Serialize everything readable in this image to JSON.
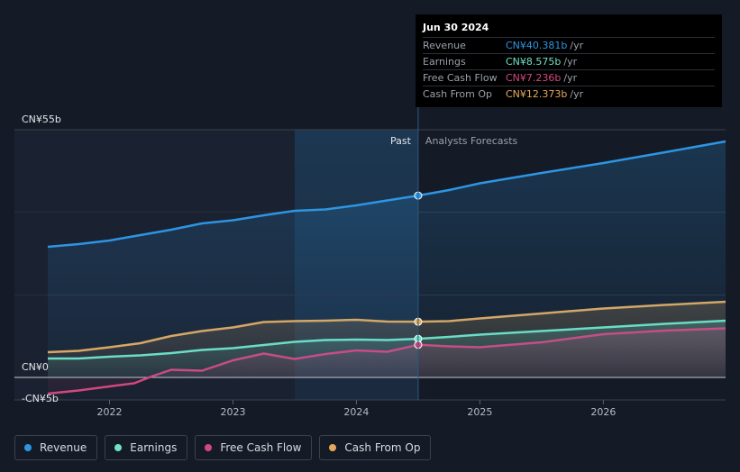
{
  "colors": {
    "revenue": "#2d95e3",
    "earnings": "#6fe3c4",
    "fcf": "#d1487f",
    "cfo": "#e5a95b",
    "background": "#151b26"
  },
  "tooltip": {
    "date": "Jun 30 2024",
    "rows": [
      {
        "label": "Revenue",
        "value": "CN¥40.381b",
        "unit": "/yr",
        "color_key": "revenue"
      },
      {
        "label": "Earnings",
        "value": "CN¥8.575b",
        "unit": "/yr",
        "color_key": "earnings"
      },
      {
        "label": "Free Cash Flow",
        "value": "CN¥7.236b",
        "unit": "/yr",
        "color_key": "fcf"
      },
      {
        "label": "Cash From Op",
        "value": "CN¥12.373b",
        "unit": "/yr",
        "color_key": "cfo"
      }
    ]
  },
  "legend": [
    {
      "label": "Revenue",
      "color_key": "revenue"
    },
    {
      "label": "Earnings",
      "color_key": "earnings"
    },
    {
      "label": "Free Cash Flow",
      "color_key": "fcf"
    },
    {
      "label": "Cash From Op",
      "color_key": "cfo"
    }
  ],
  "chart_data": {
    "type": "area",
    "ylim": [
      -5,
      55
    ],
    "y_tick_labels": [
      "CN¥55b",
      "CN¥0",
      "-CN¥5b"
    ],
    "y_tick_values": [
      55,
      0,
      -5
    ],
    "x_tick_labels": [
      "2022",
      "2023",
      "2024",
      "2025",
      "2026"
    ],
    "x_tick_values": [
      2022,
      2023,
      2024,
      2025,
      2026
    ],
    "xlim": [
      2021.23,
      2026.99
    ],
    "past_label": "Past",
    "forecast_label": "Analysts Forecasts",
    "past_end": 2024.5,
    "highlight_start": 2023.5,
    "grid": true,
    "legend_position": "bottom-left",
    "series": [
      {
        "name": "Revenue",
        "color_key": "revenue",
        "x": [
          2021.5,
          2021.75,
          2022.0,
          2022.25,
          2022.5,
          2022.75,
          2023.0,
          2023.25,
          2023.5,
          2023.75,
          2024.0,
          2024.25,
          2024.5,
          2024.75,
          2025.0,
          2025.5,
          2026.0,
          2026.5,
          2026.99
        ],
        "values": [
          29.0,
          29.6,
          30.4,
          31.6,
          32.8,
          34.2,
          34.9,
          36.0,
          37.0,
          37.3,
          38.2,
          39.3,
          40.381,
          41.6,
          43.1,
          45.4,
          47.6,
          50.0,
          52.4
        ]
      },
      {
        "name": "Earnings",
        "color_key": "earnings",
        "x": [
          2021.5,
          2021.75,
          2022.0,
          2022.25,
          2022.5,
          2022.75,
          2023.0,
          2023.25,
          2023.5,
          2023.75,
          2024.0,
          2024.25,
          2024.5,
          2024.75,
          2025.0,
          2025.5,
          2026.0,
          2026.5,
          2026.99
        ],
        "values": [
          4.2,
          4.2,
          4.6,
          4.9,
          5.4,
          6.1,
          6.5,
          7.2,
          7.9,
          8.3,
          8.4,
          8.3,
          8.575,
          9.0,
          9.5,
          10.3,
          11.1,
          11.9,
          12.6
        ]
      },
      {
        "name": "Free Cash Flow",
        "color_key": "fcf",
        "x": [
          2021.5,
          2021.75,
          2022.0,
          2022.2,
          2022.35,
          2022.5,
          2022.75,
          2023.0,
          2023.25,
          2023.5,
          2023.75,
          2024.0,
          2024.25,
          2024.5,
          2024.75,
          2025.0,
          2025.5,
          2026.0,
          2026.5,
          2026.99
        ],
        "values": [
          -3.6,
          -2.9,
          -2.0,
          -1.3,
          0.3,
          1.7,
          1.5,
          3.8,
          5.3,
          4.1,
          5.2,
          6.0,
          5.7,
          7.236,
          6.9,
          6.7,
          7.8,
          9.6,
          10.4,
          10.9
        ]
      },
      {
        "name": "Cash From Op",
        "color_key": "cfo",
        "x": [
          2021.5,
          2021.75,
          2022.0,
          2022.25,
          2022.5,
          2022.75,
          2023.0,
          2023.25,
          2023.5,
          2023.75,
          2024.0,
          2024.25,
          2024.5,
          2024.75,
          2025.0,
          2025.5,
          2026.0,
          2026.5,
          2026.99
        ],
        "values": [
          5.6,
          5.9,
          6.7,
          7.6,
          9.2,
          10.3,
          11.1,
          12.3,
          12.5,
          12.6,
          12.8,
          12.4,
          12.373,
          12.5,
          13.1,
          14.2,
          15.3,
          16.1,
          16.8
        ]
      }
    ]
  }
}
